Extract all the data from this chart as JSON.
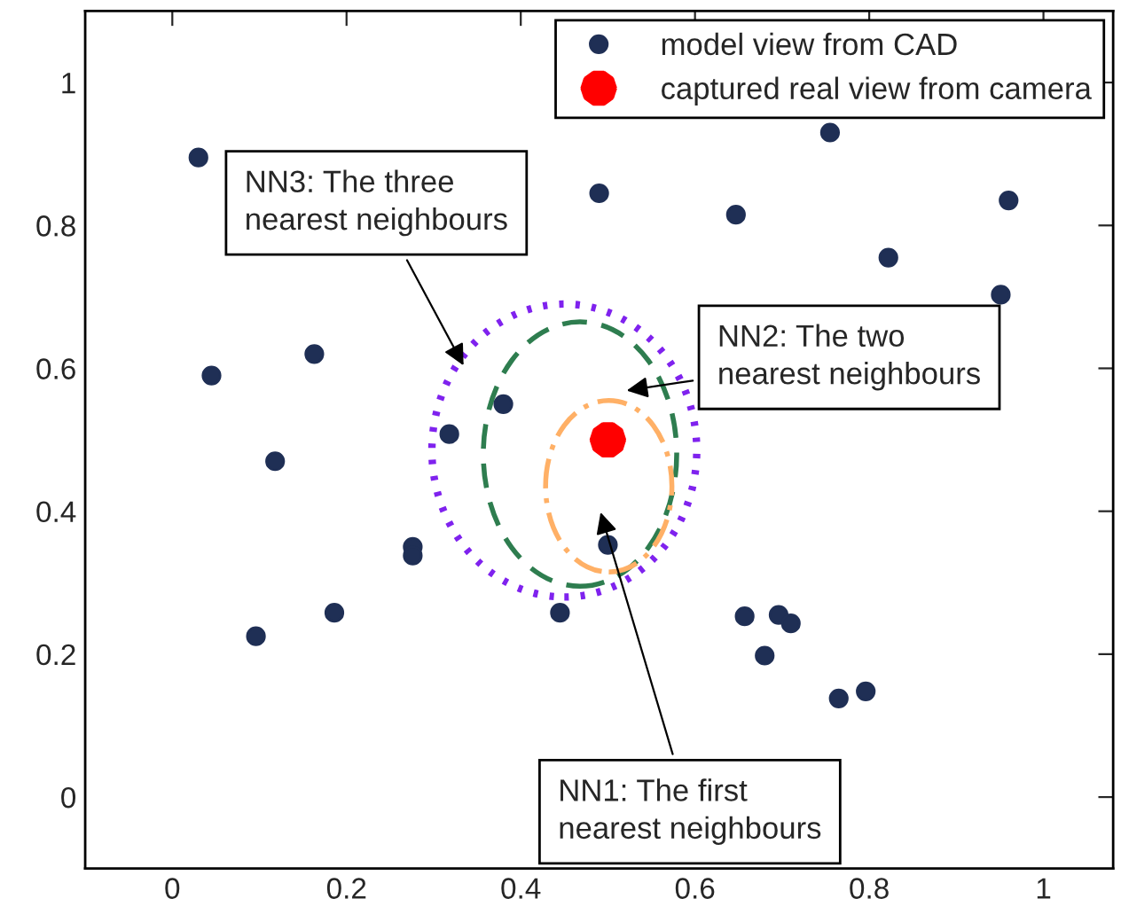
{
  "chart_data": {
    "type": "scatter",
    "xlim": [
      -0.1,
      1.08
    ],
    "ylim": [
      -0.1,
      1.1
    ],
    "xticks": [
      0,
      0.2,
      0.4,
      0.6,
      0.8,
      1
    ],
    "yticks": [
      0,
      0.2,
      0.4,
      0.6,
      0.8,
      1
    ],
    "grid": false,
    "legend": "top right",
    "series": [
      {
        "name": "model view from CAD",
        "color": "#1f2f55",
        "marker": "circle",
        "x": [
          0.03,
          0.045,
          0.163,
          0.118,
          0.096,
          0.186,
          0.276,
          0.276,
          0.318,
          0.38,
          0.445,
          0.5,
          0.49,
          0.647,
          0.755,
          0.822,
          0.951,
          0.96,
          0.657,
          0.696,
          0.71,
          0.68,
          0.765,
          0.796
        ],
        "values": [
          0.895,
          0.59,
          0.62,
          0.47,
          0.225,
          0.258,
          0.35,
          0.338,
          0.508,
          0.55,
          0.258,
          0.353,
          0.845,
          0.815,
          0.93,
          0.755,
          0.703,
          0.835,
          0.253,
          0.255,
          0.243,
          0.198,
          0.138,
          0.148
        ]
      },
      {
        "name": "captured real view from camera",
        "color": "#ff0000",
        "marker": "star",
        "x": [
          0.5
        ],
        "values": [
          0.5
        ]
      }
    ],
    "annotations": [
      "NN3: The three\nnearest neighbours",
      "NN2: The two\nnearest neighbours",
      "NN1: The first\nnearest neighbours"
    ]
  }
}
